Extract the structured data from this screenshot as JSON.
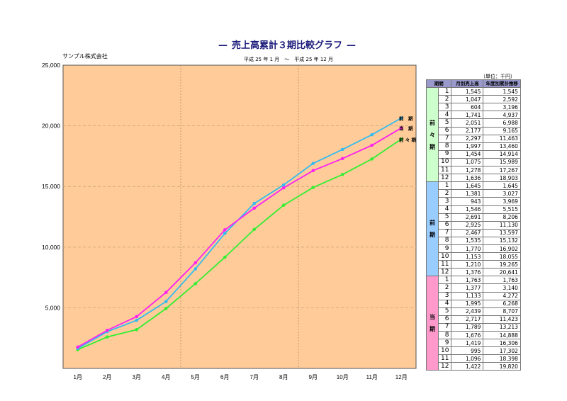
{
  "header": {
    "title": "売上高累計３期比較グラフ",
    "title_dash": "—",
    "company": "サンプル株式会社",
    "period": "平成 25 年 1 月　～　平成 25 年 12 月",
    "unit": "（単位：千円）"
  },
  "colors": {
    "plot_bg": "#ffcc99",
    "zenzen": "#33ee33",
    "zen": "#33bbee",
    "tou": "#ff22ee"
  },
  "chart_data": {
    "type": "line",
    "categories": [
      "1月",
      "2月",
      "3月",
      "4月",
      "5月",
      "6月",
      "7月",
      "8月",
      "9月",
      "10月",
      "11月",
      "12月"
    ],
    "ylim": [
      0,
      25000
    ],
    "yticks": [
      5000,
      10000,
      15000,
      20000,
      25000
    ],
    "ytick_labels": [
      "5,000",
      "10,000",
      "15,000",
      "20,000",
      "25,000"
    ],
    "grid": true,
    "series": [
      {
        "name": "前々期",
        "label": "前 々 期",
        "color": "#33ee33",
        "values": [
          1545,
          2592,
          3196,
          4937,
          6988,
          9165,
          11463,
          13460,
          14914,
          15989,
          17267,
          18903
        ]
      },
      {
        "name": "前期",
        "label": "前　期",
        "color": "#33bbee",
        "values": [
          1645,
          3027,
          3969,
          5515,
          8206,
          11130,
          13597,
          15132,
          16902,
          18055,
          19265,
          20641
        ]
      },
      {
        "name": "当期",
        "label": "当　期",
        "color": "#ff22ee",
        "values": [
          1763,
          3140,
          4272,
          6268,
          8707,
          11423,
          13213,
          14888,
          16306,
          17302,
          18398,
          19820
        ]
      }
    ]
  },
  "table": {
    "headers": [
      "期間",
      "月別売上高",
      "年度別累計推移"
    ],
    "groups": [
      {
        "label": "前 々 期",
        "chars": [
          "前",
          "々",
          "期"
        ],
        "color": "#ccffcc",
        "rows": [
          {
            "m": "1",
            "monthly": "1,545",
            "cumulative": "1,545"
          },
          {
            "m": "2",
            "monthly": "1,047",
            "cumulative": "2,592"
          },
          {
            "m": "3",
            "monthly": "604",
            "cumulative": "3,196"
          },
          {
            "m": "4",
            "monthly": "1,741",
            "cumulative": "4,937"
          },
          {
            "m": "5",
            "monthly": "2,051",
            "cumulative": "6,988"
          },
          {
            "m": "6",
            "monthly": "2,177",
            "cumulative": "9,165"
          },
          {
            "m": "7",
            "monthly": "2,297",
            "cumulative": "11,463"
          },
          {
            "m": "8",
            "monthly": "1,997",
            "cumulative": "13,460"
          },
          {
            "m": "9",
            "monthly": "1,454",
            "cumulative": "14,914"
          },
          {
            "m": "10",
            "monthly": "1,075",
            "cumulative": "15,989"
          },
          {
            "m": "11",
            "monthly": "1,278",
            "cumulative": "17,267"
          },
          {
            "m": "12",
            "monthly": "1,636",
            "cumulative": "18,903"
          }
        ]
      },
      {
        "label": "前 期",
        "chars": [
          "前",
          "期"
        ],
        "color": "#99ccff",
        "rows": [
          {
            "m": "1",
            "monthly": "1,645",
            "cumulative": "1,645"
          },
          {
            "m": "2",
            "monthly": "1,381",
            "cumulative": "3,027"
          },
          {
            "m": "3",
            "monthly": "943",
            "cumulative": "3,969"
          },
          {
            "m": "4",
            "monthly": "1,546",
            "cumulative": "5,515"
          },
          {
            "m": "5",
            "monthly": "2,691",
            "cumulative": "8,206"
          },
          {
            "m": "6",
            "monthly": "2,925",
            "cumulative": "11,130"
          },
          {
            "m": "7",
            "monthly": "2,467",
            "cumulative": "13,597"
          },
          {
            "m": "8",
            "monthly": "1,535",
            "cumulative": "15,132"
          },
          {
            "m": "9",
            "monthly": "1,770",
            "cumulative": "16,902"
          },
          {
            "m": "10",
            "monthly": "1,153",
            "cumulative": "18,055"
          },
          {
            "m": "11",
            "monthly": "1,210",
            "cumulative": "19,265"
          },
          {
            "m": "12",
            "monthly": "1,376",
            "cumulative": "20,641"
          }
        ]
      },
      {
        "label": "当 期",
        "chars": [
          "当",
          "期"
        ],
        "color": "#ff99cc",
        "rows": [
          {
            "m": "1",
            "monthly": "1,763",
            "cumulative": "1,763"
          },
          {
            "m": "2",
            "monthly": "1,377",
            "cumulative": "3,140"
          },
          {
            "m": "3",
            "monthly": "1,133",
            "cumulative": "4,272"
          },
          {
            "m": "4",
            "monthly": "1,995",
            "cumulative": "6,268"
          },
          {
            "m": "5",
            "monthly": "2,439",
            "cumulative": "8,707"
          },
          {
            "m": "6",
            "monthly": "2,717",
            "cumulative": "11,423"
          },
          {
            "m": "7",
            "monthly": "1,789",
            "cumulative": "13,213"
          },
          {
            "m": "8",
            "monthly": "1,676",
            "cumulative": "14,888"
          },
          {
            "m": "9",
            "monthly": "1,419",
            "cumulative": "16,306"
          },
          {
            "m": "10",
            "monthly": "995",
            "cumulative": "17,302"
          },
          {
            "m": "11",
            "monthly": "1,096",
            "cumulative": "18,398"
          },
          {
            "m": "12",
            "monthly": "1,422",
            "cumulative": "19,820"
          }
        ]
      }
    ]
  }
}
